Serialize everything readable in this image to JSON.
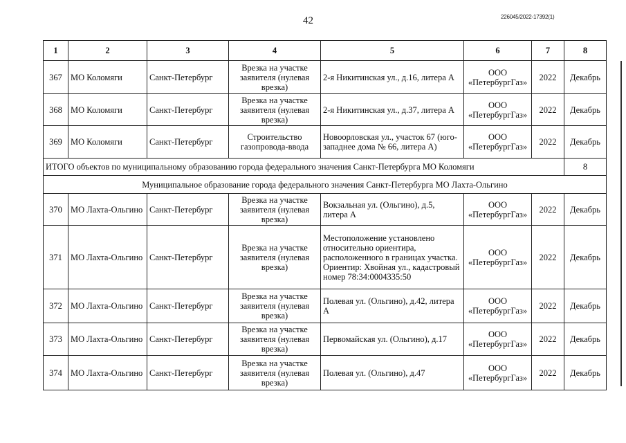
{
  "page_number": "42",
  "doc_id": "226045/2022-17392(1)",
  "header": [
    "1",
    "2",
    "3",
    "4",
    "5",
    "6",
    "7",
    "8"
  ],
  "rows_a": [
    {
      "n": "367",
      "mo": "МО Коломяги",
      "city": "Санкт-Петербург",
      "work": "Врезка на участке заявителя (нулевая врезка)",
      "addr": "2-я Никитинская ул., д.16, литера А",
      "org1": "ООО",
      "org2": "«ПетербургГаз»",
      "year": "2022",
      "month": "Декабрь"
    },
    {
      "n": "368",
      "mo": "МО Коломяги",
      "city": "Санкт-Петербург",
      "work": "Врезка на участке заявителя (нулевая врезка)",
      "addr": "2-я Никитинская ул., д.37, литера А",
      "org1": "ООО",
      "org2": "«ПетербургГаз»",
      "year": "2022",
      "month": "Декабрь"
    },
    {
      "n": "369",
      "mo": "МО Коломяги",
      "city": "Санкт-Петербург",
      "work": "Строительство газопровода-ввода",
      "addr": "Новоорловская ул., участок 67 (юго-западнее дома № 66, литера А)",
      "org1": "ООО",
      "org2": "«ПетербургГаз»",
      "year": "2022",
      "month": "Декабрь"
    }
  ],
  "total": {
    "label": "ИТОГО объектов по муниципальному образованию города федерального значения Санкт-Петербурга МО Коломяги",
    "value": "8"
  },
  "section_title": "Муниципальное образование города федерального значения Санкт-Петербурга МО Лахта-Ольгино",
  "rows_b": [
    {
      "n": "370",
      "mo": "МО Лахта-Ольгино",
      "city": "Санкт-Петербург",
      "work": "Врезка на участке заявителя (нулевая врезка)",
      "addr": "Вокзальная ул. (Ольгино), д.5, литера А",
      "org1": "ООО",
      "org2": "«ПетербургГаз»",
      "year": "2022",
      "month": "Декабрь"
    },
    {
      "n": "371",
      "mo": "МО Лахта-Ольгино",
      "city": "Санкт-Петербург",
      "work": "Врезка на участке заявителя (нулевая врезка)",
      "addr": "Местоположение установлено относительно ориентира, расположенного в границах участка. Ориентир: Хвойная ул., кадастровый номер 78:34:0004335:50",
      "org1": "ООО",
      "org2": "«ПетербургГаз»",
      "year": "2022",
      "month": "Декабрь"
    },
    {
      "n": "372",
      "mo": "МО Лахта-Ольгино",
      "city": "Санкт-Петербург",
      "work": "Врезка на участке заявителя (нулевая врезка)",
      "addr": "Полевая ул. (Ольгино), д.42, литера А",
      "org1": "ООО",
      "org2": "«ПетербургГаз»",
      "year": "2022",
      "month": "Декабрь"
    },
    {
      "n": "373",
      "mo": "МО Лахта-Ольгино",
      "city": "Санкт-Петербург",
      "work": "Врезка на участке заявителя (нулевая врезка)",
      "addr": "Первомайская ул. (Ольгино), д.17",
      "org1": "ООО",
      "org2": "«ПетербургГаз»",
      "year": "2022",
      "month": "Декабрь"
    },
    {
      "n": "374",
      "mo": "МО Лахта-Ольгино",
      "city": "Санкт-Петербург",
      "work": "Врезка на участке заявителя (нулевая врезка)",
      "addr": "Полевая ул. (Ольгино), д.47",
      "org1": "ООО",
      "org2": "«ПетербургГаз»",
      "year": "2022",
      "month": "Декабрь"
    }
  ]
}
